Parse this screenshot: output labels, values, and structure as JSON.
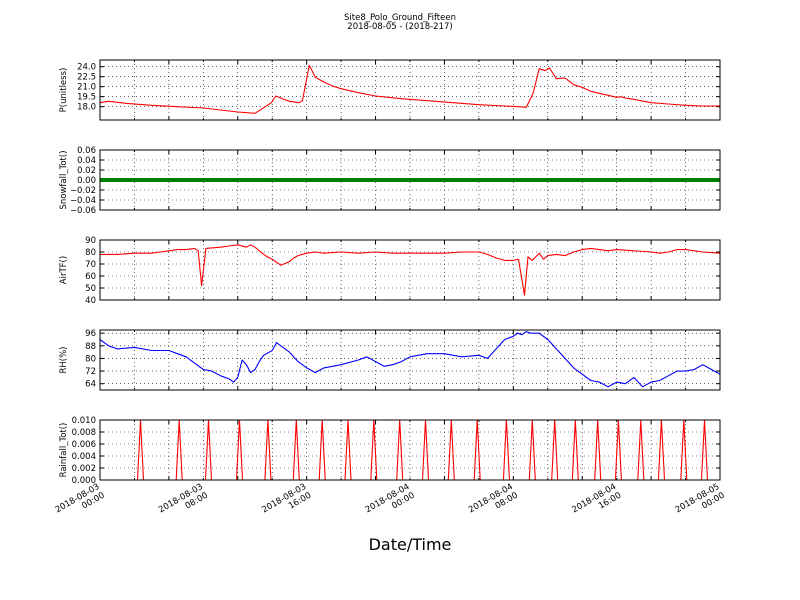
{
  "figure": {
    "title": "Site8_Polo_Ground_Fifteen",
    "subtitle": "2018-08-05 - (2018-217)",
    "xlabel": "Date/Time",
    "x_tick_labels": [
      [
        "2018-08-03",
        "00:00"
      ],
      [
        "2018-08-03",
        "08:00"
      ],
      [
        "2018-08-03",
        "16:00"
      ],
      [
        "2018-08-04",
        "00:00"
      ],
      [
        "2018-08-04",
        "08:00"
      ],
      [
        "2018-08-04",
        "16:00"
      ],
      [
        "2018-08-05",
        "00:00"
      ]
    ]
  },
  "chart_data": [
    {
      "type": "line",
      "ylabel": "P(unitless)",
      "ylim": [
        16.0,
        25.0
      ],
      "yticks": [
        18.0,
        19.5,
        21.0,
        22.5,
        24.0
      ],
      "ytick_labels": [
        "18.0",
        "19.5",
        "21.0",
        "22.5",
        "24.0"
      ],
      "color": "#ff0000",
      "grid": true,
      "x_hours": [
        0,
        1,
        3,
        6,
        9,
        12,
        14,
        16,
        18,
        19.9,
        20.4,
        21.2,
        22,
        23.1,
        23.5,
        24.3,
        25,
        26,
        27,
        28,
        30,
        32,
        35,
        38,
        41,
        44,
        47,
        48.7,
        49.5,
        50.3,
        51,
        51.7,
        52.2,
        53,
        54,
        55,
        56,
        57,
        58,
        59,
        60,
        60.5,
        61,
        62,
        64,
        66,
        68,
        70,
        72
      ],
      "values": [
        18.6,
        18.8,
        18.5,
        18.2,
        18.0,
        17.8,
        17.5,
        17.2,
        17.0,
        18.6,
        19.6,
        19.2,
        18.8,
        18.6,
        18.9,
        24.2,
        22.4,
        21.7,
        21.1,
        20.7,
        20.1,
        19.6,
        19.2,
        18.9,
        18.6,
        18.3,
        18.1,
        18.0,
        17.9,
        20.0,
        23.7,
        23.4,
        23.8,
        22.2,
        22.3,
        21.3,
        20.9,
        20.3,
        20.0,
        19.7,
        19.4,
        19.5,
        19.3,
        19.1,
        18.6,
        18.4,
        18.2,
        18.1,
        18.1
      ]
    },
    {
      "type": "line",
      "ylabel": "Snowfall_Tot()",
      "ylim": [
        -0.06,
        0.06
      ],
      "yticks": [
        -0.06,
        -0.04,
        -0.02,
        0.0,
        0.02,
        0.04,
        0.06
      ],
      "ytick_labels": [
        "−0.06",
        "−0.04",
        "−0.02",
        "0.00",
        "0.02",
        "0.04",
        "0.06"
      ],
      "color": "#008000",
      "grid": true,
      "x_hours": [
        0,
        72
      ],
      "values": [
        0.0,
        0.0
      ]
    },
    {
      "type": "line",
      "ylabel": "AirTF()",
      "ylim": [
        40,
        90
      ],
      "yticks": [
        40,
        50,
        60,
        70,
        80,
        90
      ],
      "ytick_labels": [
        "40",
        "50",
        "60",
        "70",
        "80",
        "90"
      ],
      "color": "#ff0000",
      "grid": true,
      "x_hours": [
        0,
        2,
        4,
        6,
        7,
        8,
        9,
        10,
        11,
        11.4,
        11.8,
        12.3,
        14,
        15,
        16,
        17,
        17.5,
        18,
        18.5,
        19.2,
        20,
        21,
        22,
        22.5,
        23,
        24,
        25,
        26,
        28,
        30,
        32,
        34,
        36,
        38,
        40,
        42,
        44,
        45,
        46,
        47,
        48,
        48.6,
        49.3,
        49.7,
        50.2,
        51,
        51.5,
        52,
        53,
        54,
        55,
        56,
        57,
        58,
        59,
        60,
        62,
        64,
        65,
        66,
        67,
        68,
        70,
        72
      ],
      "values": [
        78,
        78,
        79,
        79,
        80,
        81,
        82,
        82,
        83,
        81,
        52,
        83,
        84,
        85,
        86,
        84,
        86,
        84,
        81,
        77,
        74,
        69,
        72,
        75,
        77,
        79,
        80,
        79,
        80,
        79,
        80,
        79,
        79,
        79,
        79,
        80,
        80,
        78,
        75,
        73,
        73,
        74,
        44,
        76,
        73,
        79,
        74,
        77,
        78,
        77,
        80,
        82,
        83,
        82,
        81,
        82,
        81,
        80,
        79,
        80,
        82,
        82,
        80,
        79
      ]
    },
    {
      "type": "line",
      "ylabel": "RH(%)",
      "ylim": [
        60,
        98
      ],
      "yticks": [
        64,
        72,
        80,
        88,
        96
      ],
      "ytick_labels": [
        "64",
        "72",
        "80",
        "88",
        "96"
      ],
      "color": "#0000ff",
      "grid": true,
      "x_hours": [
        0,
        1,
        2,
        4,
        6,
        8,
        9,
        10,
        11,
        12,
        13,
        14,
        15,
        15.5,
        16,
        16.5,
        17,
        17.5,
        18,
        18.5,
        19,
        20,
        20.5,
        21,
        22,
        23,
        24,
        25,
        26,
        28,
        30,
        31,
        32,
        33,
        34,
        35,
        36,
        38,
        40,
        42,
        44,
        45,
        46,
        47,
        48,
        48.5,
        49,
        49.5,
        50,
        51,
        52,
        53,
        54,
        55,
        56,
        57,
        58,
        59,
        60,
        61,
        62,
        63,
        64,
        65,
        66,
        67,
        68,
        69,
        70,
        71,
        72
      ],
      "values": [
        92,
        88,
        86,
        87,
        85,
        85,
        83,
        81,
        77,
        73,
        72,
        69,
        67,
        65,
        68,
        79,
        76,
        71,
        73,
        78,
        82,
        85,
        90,
        88,
        84,
        78,
        74,
        71,
        74,
        76,
        79,
        81,
        78,
        75,
        76,
        78,
        81,
        83,
        83,
        81,
        82,
        80,
        86,
        92,
        94,
        96,
        95,
        97,
        96,
        96,
        92,
        86,
        80,
        74,
        70,
        66,
        65,
        62,
        65,
        64,
        68,
        62,
        65,
        66,
        69,
        72,
        72,
        73,
        76,
        73,
        70
      ]
    },
    {
      "type": "line",
      "ylabel": "Rainfall_Tot()",
      "ylim": [
        0.0,
        0.01
      ],
      "yticks": [
        0.0,
        0.002,
        0.004,
        0.006,
        0.008,
        0.01
      ],
      "ytick_labels": [
        "0.000",
        "0.002",
        "0.004",
        "0.006",
        "0.008",
        "0.010"
      ],
      "color": "#ff0000",
      "grid": true,
      "spike_hours": [
        4.7,
        9.2,
        12.6,
        16.2,
        19.5,
        22.8,
        25.8,
        28.8,
        31.8,
        34.8,
        37.8,
        40.8,
        43.8,
        47.2,
        50.2,
        52.8,
        55.2,
        57.8,
        60.2,
        62.8,
        65.2,
        67.8,
        70.2
      ],
      "spike_value": 0.01,
      "baseline": 0.0
    }
  ]
}
